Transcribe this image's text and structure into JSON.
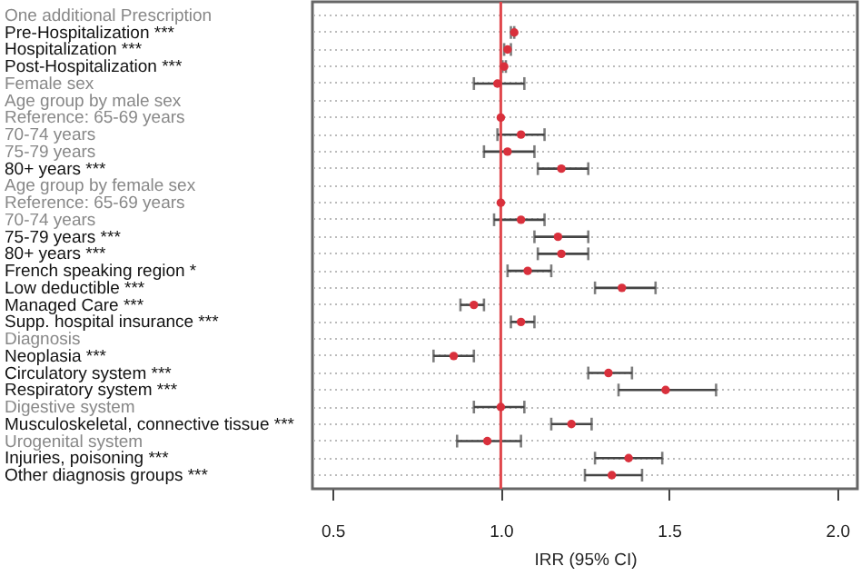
{
  "chart_data": {
    "type": "scatter",
    "orientation": "horizontal",
    "xlabel": "IRR (95% CI)",
    "categories": [
      "One additional Prescription",
      "Pre-Hospitalization ***",
      "Hospitalization ***",
      "Post-Hospitalization ***",
      "Female sex",
      "Age group by male sex",
      "Reference: 65-69 years",
      "70-74 years",
      "75-79 years",
      "80+ years ***",
      "Age group by female sex",
      "Reference: 65-69 years",
      "70-74 years",
      "75-79 years ***",
      "80+ years ***",
      "French speaking region *",
      "Low deductible ***",
      "Managed Care ***",
      "Supp. hospital insurance ***",
      "Diagnosis",
      "Neoplasia ***",
      "Circulatory system ***",
      "Respiratory system ***",
      "Digestive system",
      "Musculoskeletal, connective tissue  ***",
      "Urogenital system",
      "Injuries, poisoning ***",
      "Other diagnosis groups ***"
    ],
    "series": [
      {
        "color": "#d9303c",
        "values": [
          null,
          1.04,
          1.02,
          1.01,
          0.99,
          null,
          1.0,
          1.06,
          1.02,
          1.18,
          null,
          1.0,
          1.06,
          1.17,
          1.18,
          1.08,
          1.36,
          0.92,
          1.06,
          null,
          0.86,
          1.32,
          1.49,
          1.0,
          1.21,
          0.96,
          1.38,
          1.33
        ],
        "errors": [
          null,
          [
            1.03,
            1.04
          ],
          [
            1.01,
            1.03
          ],
          [
            1.005,
            1.015
          ],
          [
            0.92,
            1.07
          ],
          null,
          null,
          [
            0.99,
            1.13
          ],
          [
            0.95,
            1.1
          ],
          [
            1.11,
            1.26
          ],
          null,
          null,
          [
            0.98,
            1.13
          ],
          [
            1.1,
            1.26
          ],
          [
            1.11,
            1.26
          ],
          [
            1.02,
            1.15
          ],
          [
            1.28,
            1.46
          ],
          [
            0.88,
            0.95
          ],
          [
            1.03,
            1.1
          ],
          null,
          [
            0.8,
            0.92
          ],
          [
            1.26,
            1.39
          ],
          [
            1.35,
            1.64
          ],
          [
            0.92,
            1.07
          ],
          [
            1.15,
            1.27
          ],
          [
            0.87,
            1.06
          ],
          [
            1.28,
            1.48
          ],
          [
            1.25,
            1.42
          ]
        ]
      }
    ],
    "xlim": [
      0.44,
      2.06
    ],
    "xticks": [
      0.5,
      {
        "value": 1,
        "label": "1.0"
      },
      1.5,
      {
        "value": 2,
        "label": "2.0"
      }
    ],
    "ref_lines": [
      {
        "axis": "x",
        "value": 1,
        "color": "#e0474c"
      }
    ],
    "grid": "y",
    "marker": "circle"
  }
}
